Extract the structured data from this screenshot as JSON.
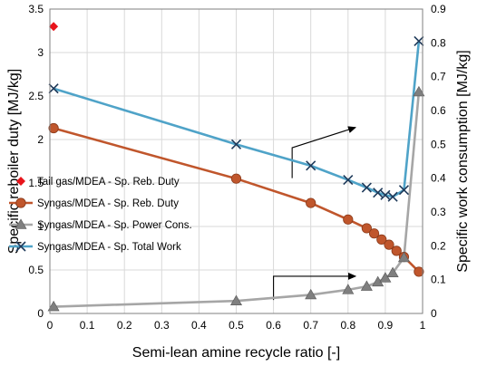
{
  "chart_data": {
    "type": "line",
    "xlabel": "Semi-lean amine recycle ratio [-]",
    "ylabel": "Specific reboiler duty [MJ/kg]",
    "y2label": "Specific work consumption [MJ/kg]",
    "xlim": [
      0,
      1
    ],
    "ylim": [
      0,
      3.5
    ],
    "y2lim": [
      0,
      0.9
    ],
    "xticks": [
      "0",
      "0.1",
      "0.2",
      "0.3",
      "0.4",
      "0.5",
      "0.6",
      "0.7",
      "0.8",
      "0.9",
      "1"
    ],
    "yticks": [
      "0",
      "0.5",
      "1",
      "1.5",
      "2",
      "2.5",
      "3",
      "3.5"
    ],
    "y2ticks": [
      "0",
      "0.1",
      "0.2",
      "0.3",
      "0.4",
      "0.5",
      "0.6",
      "0.7",
      "0.8",
      "0.9"
    ],
    "grid": true,
    "legend_position": "left",
    "series": [
      {
        "name": "Tail gas/MDEA - Sp. Reb. Duty",
        "axis": "left",
        "marker": "diamond",
        "color": "#e8141b",
        "line": false,
        "x": [
          0.01
        ],
        "y": [
          3.3
        ]
      },
      {
        "name": "Syngas/MDEA - Sp. Reb. Duty",
        "axis": "left",
        "marker": "circle",
        "color": "#c0562c",
        "line": true,
        "x": [
          0.01,
          0.5,
          0.7,
          0.8,
          0.85,
          0.87,
          0.89,
          0.91,
          0.93,
          0.95,
          0.99
        ],
        "y": [
          2.13,
          1.55,
          1.27,
          1.08,
          0.98,
          0.92,
          0.85,
          0.79,
          0.72,
          0.65,
          0.48
        ]
      },
      {
        "name": "Syngas/MDEA - Sp. Power Cons.",
        "axis": "right",
        "marker": "triangle",
        "color": "#a6a6a6",
        "line": true,
        "x": [
          0.01,
          0.5,
          0.7,
          0.8,
          0.85,
          0.88,
          0.9,
          0.92,
          0.95,
          0.99
        ],
        "y": [
          0.02,
          0.037,
          0.055,
          0.07,
          0.08,
          0.093,
          0.105,
          0.12,
          0.165,
          0.655
        ]
      },
      {
        "name": "Syngas/MDEA - Sp. Total Work",
        "axis": "right",
        "marker": "x",
        "color": "#4fa3c8",
        "line": true,
        "x": [
          0.01,
          0.5,
          0.7,
          0.8,
          0.85,
          0.88,
          0.9,
          0.92,
          0.95,
          0.99
        ],
        "y": [
          0.665,
          0.5,
          0.437,
          0.395,
          0.372,
          0.357,
          0.35,
          0.345,
          0.365,
          0.805
        ]
      }
    ],
    "annotations": [
      {
        "type": "arrow",
        "points": [
          [
            0.65,
            0.4
          ],
          [
            0.65,
            0.49
          ],
          [
            0.82,
            0.55
          ]
        ],
        "axis": "right",
        "direction": "right"
      },
      {
        "type": "arrow",
        "points": [
          [
            0.6,
            0.04
          ],
          [
            0.6,
            0.11
          ],
          [
            0.82,
            0.11
          ]
        ],
        "axis": "right",
        "direction": "right"
      }
    ]
  }
}
